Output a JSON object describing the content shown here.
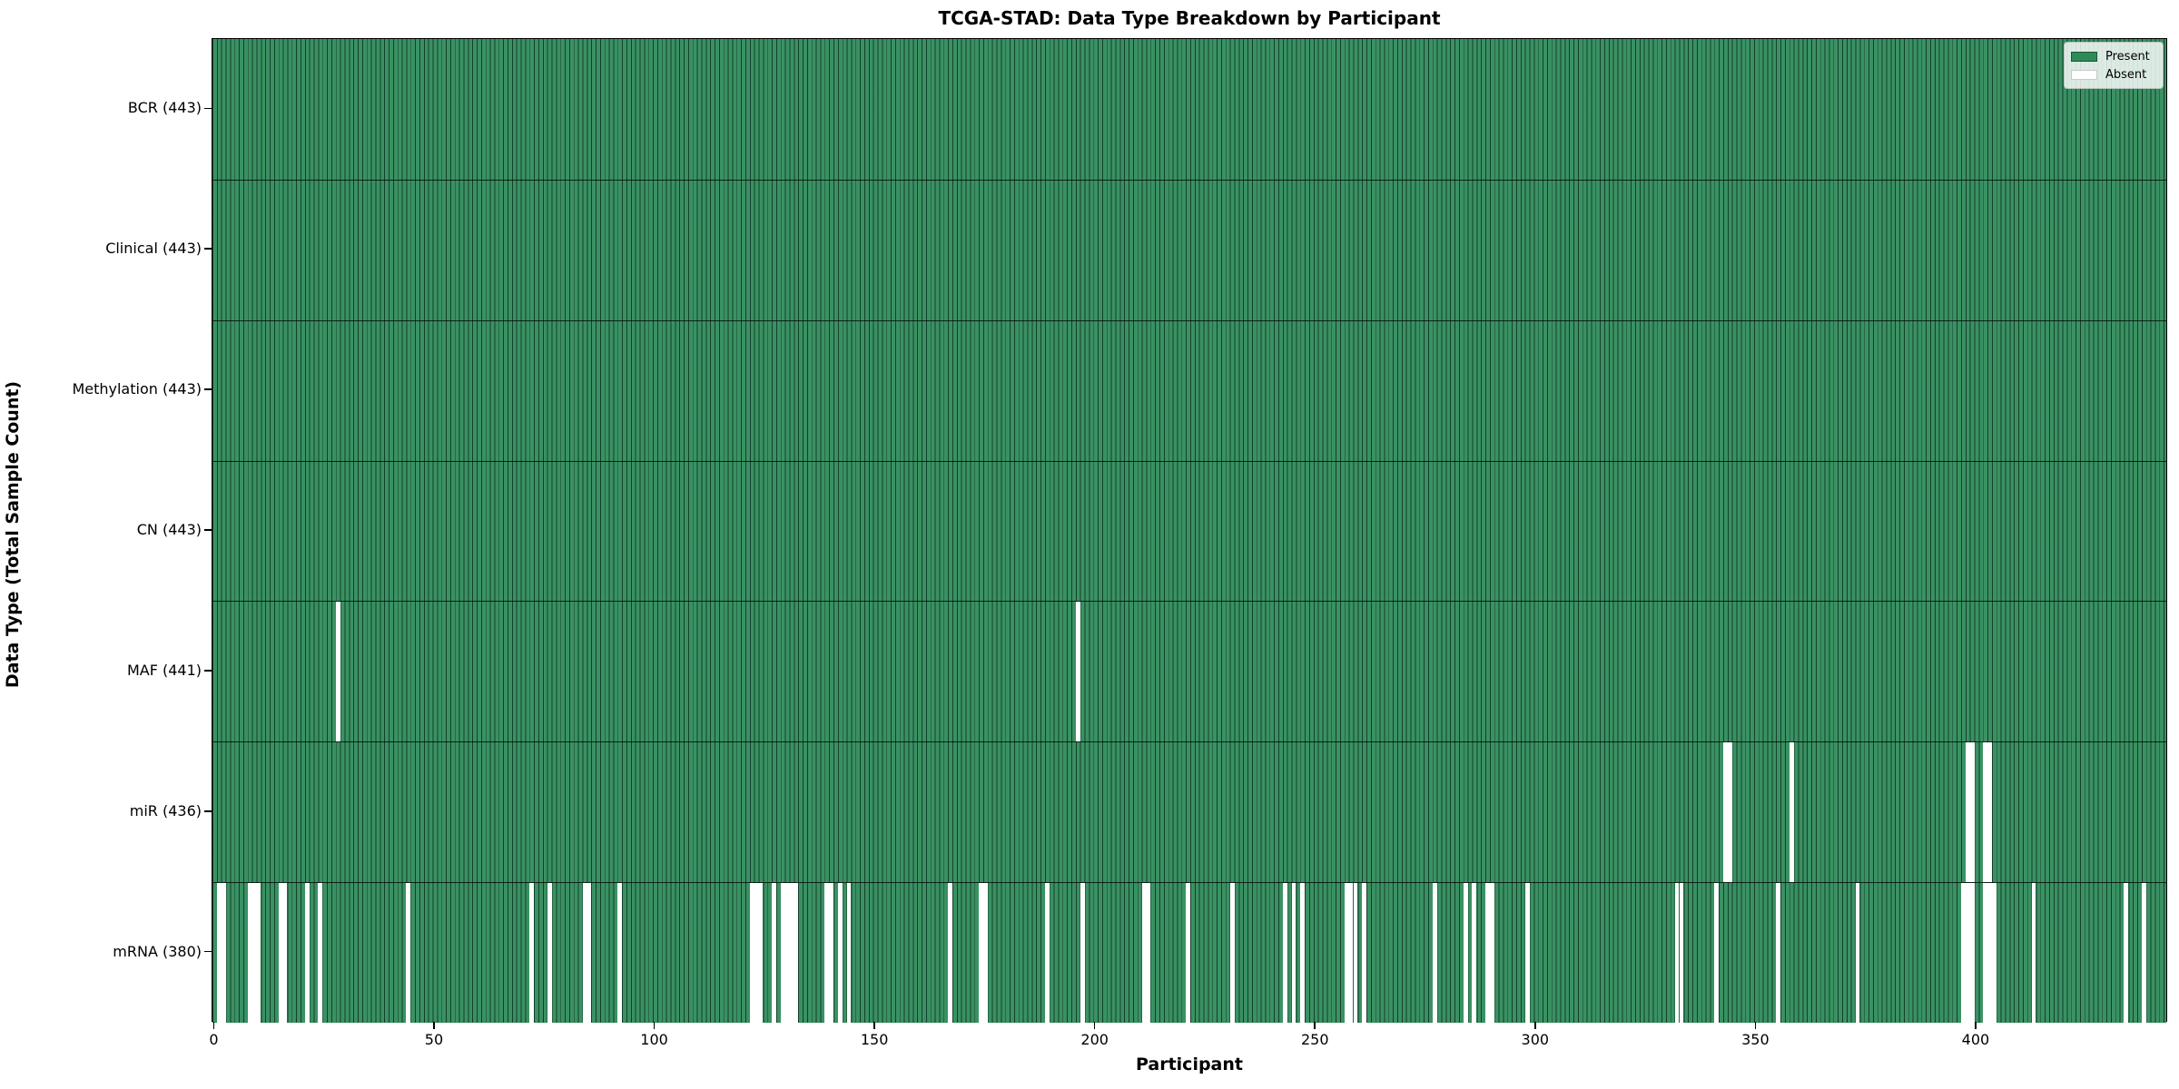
{
  "title": "TCGA-STAD: Data Type Breakdown by Participant",
  "xlabel": "Participant",
  "ylabel": "Data Type (Total Sample Count)",
  "legend": {
    "present_label": "Present",
    "absent_label": "Absent"
  },
  "colors": {
    "present_fill": "#3a9163",
    "present_swatch": "#2e8b57",
    "bar_edge": "rgba(10,45,28,0.8)",
    "absent": "#ffffff",
    "row_divider": "rgba(0,0,0,0.75)",
    "spine": "#000000"
  },
  "chart_data": {
    "type": "heatmap",
    "title": "TCGA-STAD: Data Type Breakdown by Participant",
    "xlabel": "Participant",
    "ylabel": "Data Type (Total Sample Count)",
    "n_participants": 443,
    "x_ticks": [
      0,
      50,
      100,
      150,
      200,
      250,
      300,
      350,
      400
    ],
    "legend_position": "upper right",
    "grid": false,
    "rows": [
      {
        "name": "BCR",
        "count": 443,
        "label": "BCR (443)",
        "absent": []
      },
      {
        "name": "Clinical",
        "count": 443,
        "label": "Clinical (443)",
        "absent": []
      },
      {
        "name": "Methylation",
        "count": 443,
        "label": "Methylation (443)",
        "absent": []
      },
      {
        "name": "CN",
        "count": 443,
        "label": "CN (443)",
        "absent": []
      },
      {
        "name": "MAF",
        "count": 441,
        "label": "MAF (441)",
        "absent": [
          28,
          196
        ]
      },
      {
        "name": "miR",
        "count": 436,
        "label": "miR (436)",
        "absent": [
          343,
          344,
          358,
          398,
          399,
          402,
          403
        ]
      },
      {
        "name": "mRNA",
        "count": 380,
        "label": "mRNA (380)",
        "absent": [
          1,
          2,
          8,
          9,
          10,
          15,
          16,
          21,
          24,
          44,
          72,
          76,
          84,
          85,
          92,
          122,
          123,
          124,
          127,
          129,
          130,
          131,
          132,
          139,
          140,
          142,
          144,
          167,
          174,
          175,
          189,
          197,
          211,
          212,
          221,
          231,
          243,
          245,
          247,
          257,
          258,
          259,
          261,
          277,
          284,
          286,
          289,
          290,
          298,
          332,
          333,
          341,
          355,
          373,
          397,
          398,
          399,
          402,
          403,
          404,
          413,
          434,
          438
        ]
      }
    ]
  }
}
